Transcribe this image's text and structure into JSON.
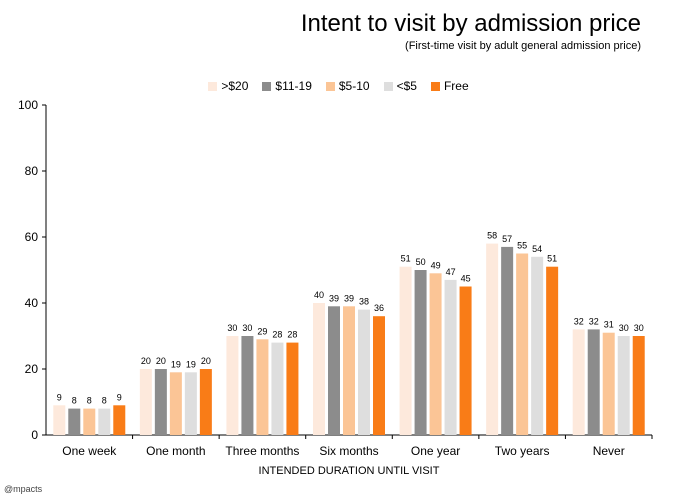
{
  "chart_data": {
    "type": "bar",
    "title": "Intent to visit by admission price",
    "subtitle": "(First-time visit by adult general admission price)",
    "xlabel": "INTENDED DURATION UNTIL VISIT",
    "ylabel": "",
    "ylim": [
      0,
      100
    ],
    "yticks": [
      "0",
      "20",
      "40",
      "60",
      "80",
      "100"
    ],
    "categories": [
      "One week",
      "One month",
      "Three months",
      "Six months",
      "One year",
      "Two years",
      "Never"
    ],
    "series": [
      {
        "name": ">$20",
        "color": "#fde9dc",
        "values": [
          9,
          20,
          30,
          40,
          51,
          58,
          32
        ]
      },
      {
        "name": "$11-19",
        "color": "#8c8c8c",
        "values": [
          8,
          20,
          30,
          39,
          50,
          57,
          32
        ]
      },
      {
        "name": "$5-10",
        "color": "#fbc596",
        "values": [
          8,
          19,
          29,
          39,
          49,
          55,
          31
        ]
      },
      {
        "name": "<$5",
        "color": "#dedede",
        "values": [
          8,
          19,
          28,
          38,
          47,
          54,
          30
        ]
      },
      {
        "name": "Free",
        "color": "#f97c17",
        "values": [
          9,
          20,
          28,
          36,
          45,
          51,
          30
        ]
      }
    ],
    "legend_position": "top-center",
    "grid": false
  },
  "brand": "@mpacts"
}
